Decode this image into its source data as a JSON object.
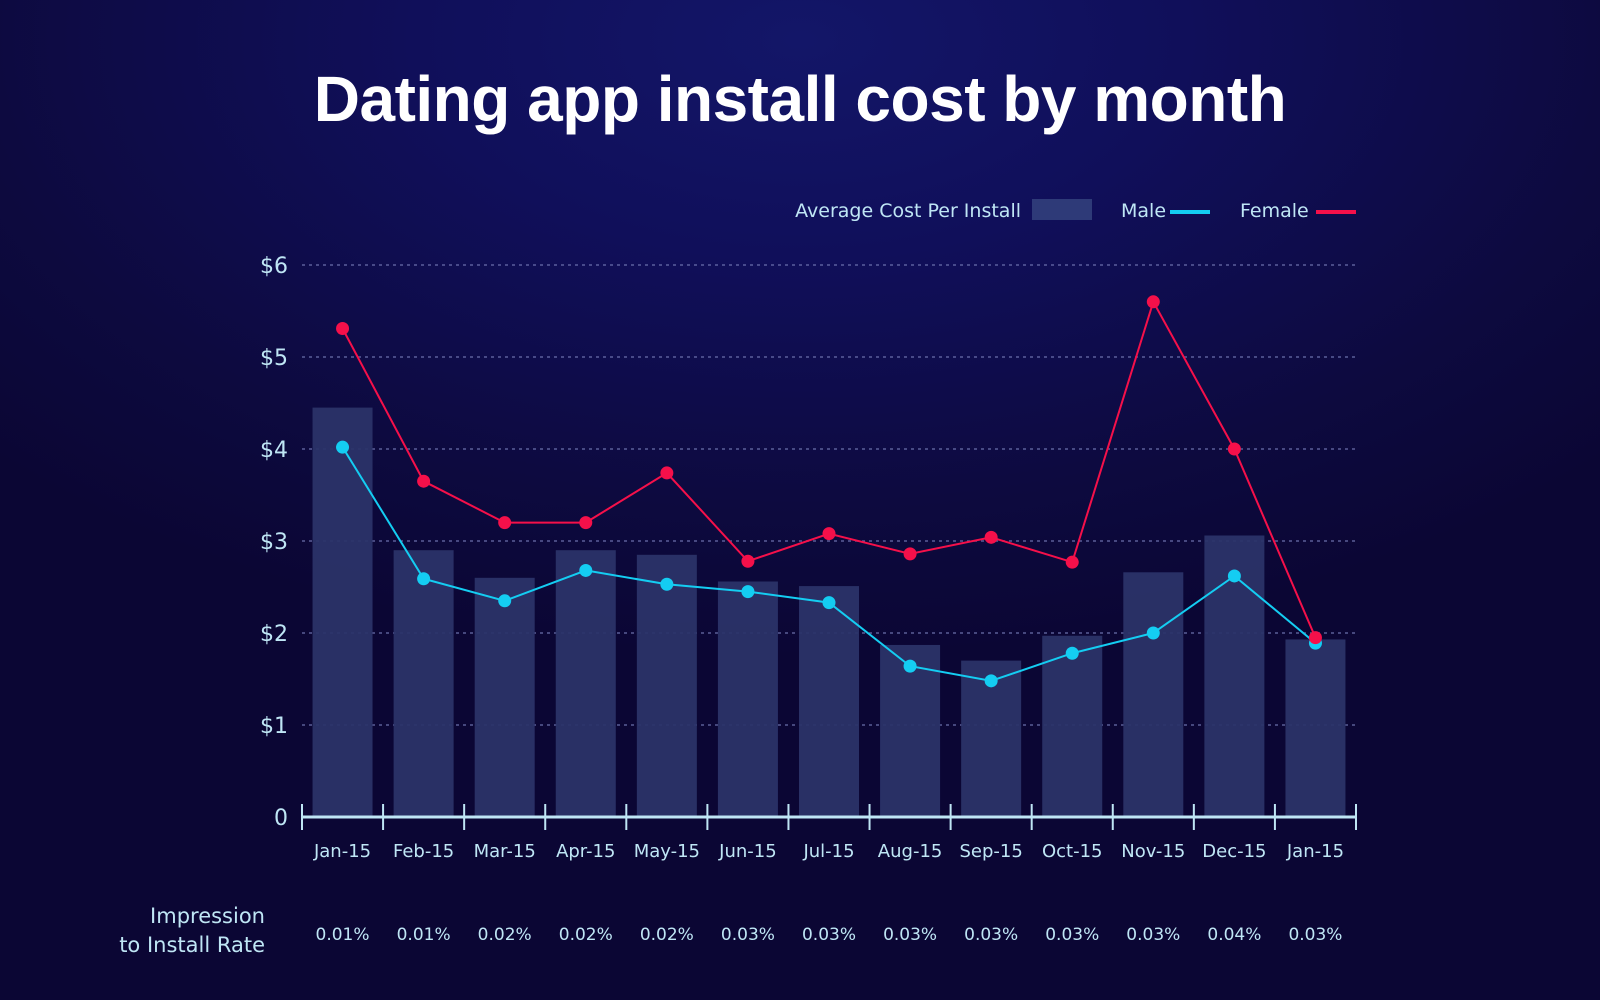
{
  "chart_data": {
    "type": "bar",
    "title": "Dating app install cost by month",
    "categories": [
      "Jan-15",
      "Feb-15",
      "Mar-15",
      "Apr-15",
      "May-15",
      "Jun-15",
      "Jul-15",
      "Aug-15",
      "Sep-15",
      "Oct-15",
      "Nov-15",
      "Dec-15",
      "Jan-15"
    ],
    "series": [
      {
        "name": "Average Cost Per Install",
        "type": "bar",
        "color": "#2b3368",
        "values": [
          4.45,
          2.9,
          2.6,
          2.9,
          2.85,
          2.56,
          2.51,
          1.87,
          1.7,
          1.97,
          2.66,
          3.06,
          1.93
        ]
      },
      {
        "name": "Male",
        "type": "line",
        "color": "#14cdf2",
        "values": [
          4.02,
          2.59,
          2.35,
          2.68,
          2.53,
          2.45,
          2.33,
          1.64,
          1.48,
          1.78,
          2.0,
          2.62,
          1.89
        ]
      },
      {
        "name": "Female",
        "type": "line",
        "color": "#f5104a",
        "values": [
          5.31,
          3.65,
          3.2,
          3.2,
          3.74,
          2.78,
          3.08,
          2.86,
          3.04,
          2.77,
          5.6,
          4.0,
          1.95
        ]
      }
    ],
    "yaxis": {
      "ticks": [
        0,
        1,
        2,
        3,
        4,
        5,
        6
      ],
      "tick_labels": [
        "0",
        "$1",
        "$2",
        "$3",
        "$4",
        "$5",
        "$6"
      ],
      "ylim": [
        0,
        6
      ]
    },
    "grid": true,
    "legend_position": "top-right",
    "rate_row": {
      "label_line1": "Impression",
      "label_line2": "to Install Rate",
      "values": [
        "0.01%",
        "0.01%",
        "0.02%",
        "0.02%",
        "0.02%",
        "0.03%",
        "0.03%",
        "0.03%",
        "0.03%",
        "0.03%",
        "0.03%",
        "0.04%",
        "0.03%"
      ]
    }
  }
}
